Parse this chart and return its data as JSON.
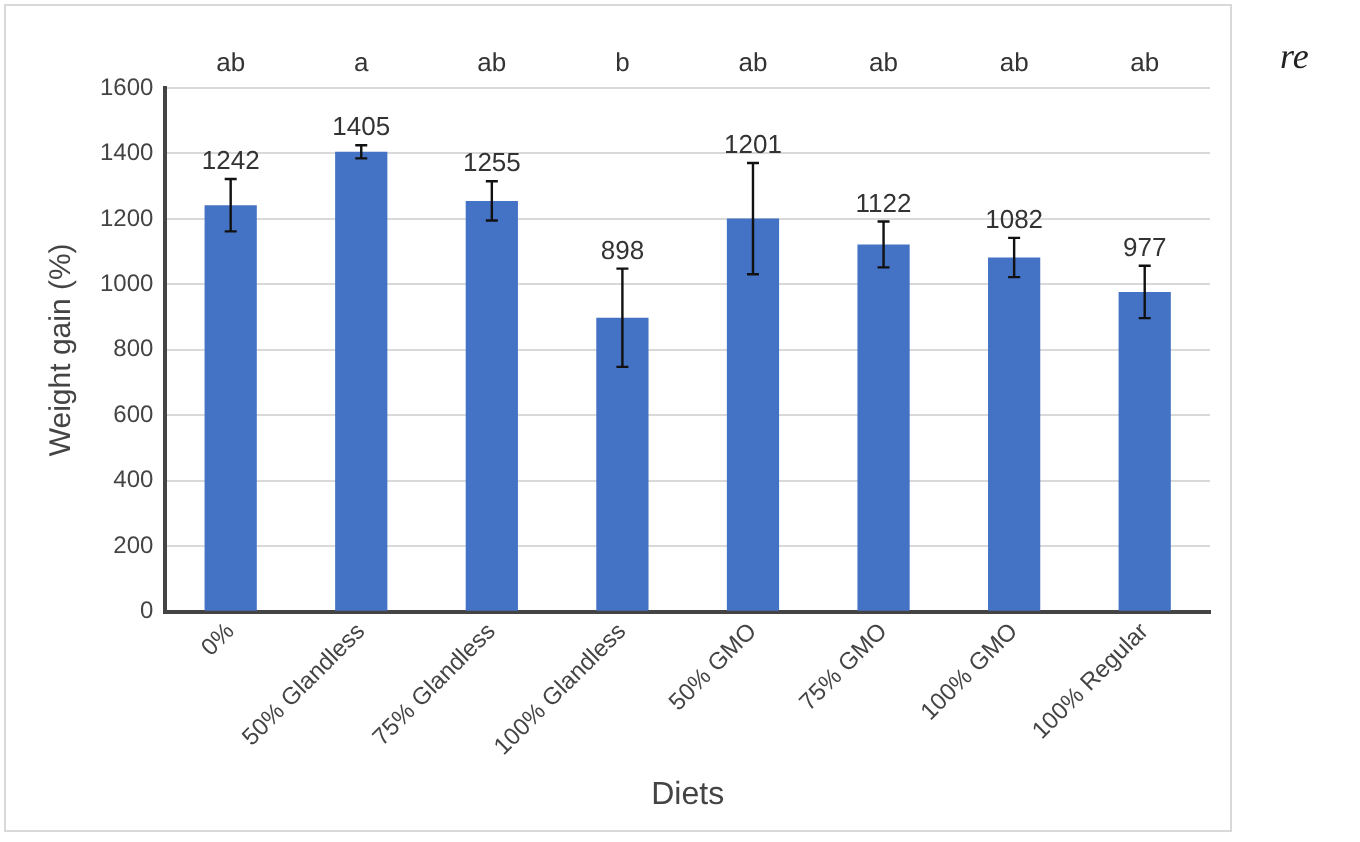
{
  "chart_data": {
    "type": "bar",
    "xlabel": "Diets",
    "ylabel": "Weight gain (%)",
    "categories": [
      "0%",
      "50% Glandless",
      "75% Glandless",
      "100% Glandless",
      "50% GMO",
      "75% GMO",
      "100% GMO",
      "100% Regular"
    ],
    "values": [
      1242,
      1405,
      1255,
      898,
      1201,
      1122,
      1082,
      977
    ],
    "data_labels": true,
    "errors": [
      80,
      20,
      60,
      150,
      170,
      70,
      60,
      80
    ],
    "color": "#4472c4",
    "ylim": [
      0,
      1600
    ],
    "yticks": [
      0,
      200,
      400,
      600,
      800,
      1000,
      1200,
      1400,
      1600
    ],
    "grid": "y",
    "legend": false,
    "annotations": [
      "ab",
      "a",
      "ab",
      "b",
      "ab",
      "ab",
      "ab",
      "ab",
      "re"
    ]
  }
}
